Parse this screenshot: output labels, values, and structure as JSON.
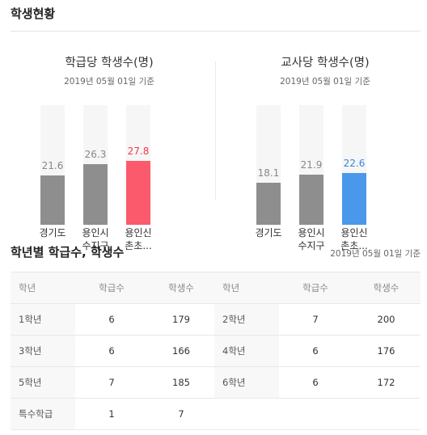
{
  "page": {
    "title": "학생현황"
  },
  "charts": [
    {
      "title": "학급당 학생수(명)",
      "date": "2019년 05월 01일 기준",
      "bars": [
        {
          "label_line1": "경기도",
          "label_line2": "",
          "value": "21.6",
          "num": 21.6,
          "highlight": "none"
        },
        {
          "label_line1": "용인시",
          "label_line2": "수지구",
          "value": "26.3",
          "num": 26.3,
          "highlight": "none"
        },
        {
          "label_line1": "용인신",
          "label_line2": "촌초...",
          "value": "27.8",
          "num": 27.8,
          "highlight": "red"
        }
      ]
    },
    {
      "title": "교사당 학생수(명)",
      "date": "2019년 05월 01일 기준",
      "bars": [
        {
          "label_line1": "경기도",
          "label_line2": "",
          "value": "18.1",
          "num": 18.1,
          "highlight": "none"
        },
        {
          "label_line1": "용인시",
          "label_line2": "수지구",
          "value": "21.9",
          "num": 21.9,
          "highlight": "none"
        },
        {
          "label_line1": "용인신",
          "label_line2": "촌초...",
          "value": "22.6",
          "num": 22.6,
          "highlight": "blue"
        }
      ]
    }
  ],
  "grade_section": {
    "title": "학년별 학급수, 학생수",
    "date": "2019년 05월 01일 기준",
    "headers": {
      "grade": "학년",
      "classes": "학급수",
      "students": "학생수"
    },
    "rows": [
      {
        "left": {
          "grade": "1학년",
          "classes": "6",
          "students": "179"
        },
        "right": {
          "grade": "2학년",
          "classes": "7",
          "students": "200"
        }
      },
      {
        "left": {
          "grade": "3학년",
          "classes": "6",
          "students": "166"
        },
        "right": {
          "grade": "4학년",
          "classes": "6",
          "students": "176"
        }
      },
      {
        "left": {
          "grade": "5학년",
          "classes": "7",
          "students": "185"
        },
        "right": {
          "grade": "6학년",
          "classes": "6",
          "students": "172"
        }
      },
      {
        "left": {
          "grade": "특수학급",
          "classes": "1",
          "students": "7"
        },
        "right": {
          "grade": "",
          "classes": "",
          "students": ""
        }
      }
    ]
  },
  "colors": {
    "bar_default": "#8e8e8e",
    "bar_highlight_red": "#fa5a6b",
    "bar_highlight_blue": "#4a98ea",
    "bar_background": "#f6f6f6"
  }
}
